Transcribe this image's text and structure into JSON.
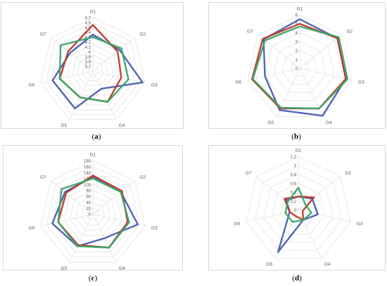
{
  "chart_data": [
    {
      "type": "radar",
      "panel_label": "a",
      "categories": [
        "G1",
        "G2",
        "G3",
        "G4",
        "G5",
        "G6",
        "G7"
      ],
      "rmin": 3.6,
      "rmax": 4.7,
      "ticks": [
        "3.7",
        "3.8",
        "3.9",
        "4",
        "4.1",
        "4.2",
        "4.3",
        "4.4",
        "4.5",
        "4.6",
        "4.7"
      ],
      "grid": true,
      "series": [
        {
          "color": "#4a5eb0",
          "values": [
            4.35,
            4.3,
            4.65,
            4.0,
            4.45,
            4.45,
            4.2
          ]
        },
        {
          "color": "#c0392b",
          "values": [
            4.55,
            4.25,
            4.2,
            4.3,
            4.2,
            4.3,
            4.25
          ]
        },
        {
          "color": "#3aa66a",
          "values": [
            4.3,
            4.35,
            4.35,
            4.3,
            4.2,
            4.3,
            4.45
          ]
        }
      ]
    },
    {
      "type": "radar",
      "panel_label": "b",
      "categories": [
        "G1",
        "G2",
        "G3",
        "G4",
        "G5",
        "G6",
        "G7"
      ],
      "rmin": 0,
      "rmax": 6,
      "ticks": [
        "0",
        "1",
        "2",
        "3",
        "4",
        "5",
        "6"
      ],
      "grid": true,
      "series": [
        {
          "color": "#4a5eb0",
          "values": [
            5.5,
            5.4,
            5.3,
            5.9,
            5.2,
            4.0,
            5.2
          ]
        },
        {
          "color": "#c0392b",
          "values": [
            5.0,
            5.4,
            5.3,
            5.0,
            5.0,
            5.5,
            5.3
          ]
        },
        {
          "color": "#3aa66a",
          "values": [
            4.7,
            5.6,
            5.5,
            5.0,
            4.9,
            5.4,
            5.0
          ]
        }
      ]
    },
    {
      "type": "radar",
      "panel_label": "c",
      "categories": [
        "G1",
        "G2",
        "G3",
        "G4",
        "G5",
        "G6",
        "G7"
      ],
      "rmin": 0,
      "rmax": 180,
      "ticks": [
        "0",
        "20",
        "40",
        "60",
        "80",
        "100",
        "120",
        "140",
        "160",
        "180"
      ],
      "grid": true,
      "series": [
        {
          "color": "#4a5eb0",
          "values": [
            125,
            120,
            155,
            90,
            120,
            140,
            120
          ]
        },
        {
          "color": "#c0392b",
          "values": [
            130,
            125,
            120,
            125,
            115,
            120,
            115
          ]
        },
        {
          "color": "#3aa66a",
          "values": [
            120,
            120,
            125,
            125,
            120,
            120,
            135
          ]
        }
      ]
    },
    {
      "type": "radar",
      "panel_label": "d",
      "categories": [
        "G1",
        "G2",
        "G3",
        "G4",
        "G5",
        "G6",
        "G7"
      ],
      "rmin": 0,
      "rmax": 1.2,
      "ticks": [
        "0",
        "0.2",
        "0.4",
        "0.6",
        "0.8",
        "1",
        "1.2"
      ],
      "grid": true,
      "series": [
        {
          "color": "#4a5eb0",
          "values": [
            0.3,
            0.4,
            0.45,
            0.25,
            1.05,
            0.2,
            0.35
          ]
        },
        {
          "color": "#c0392b",
          "values": [
            0.3,
            0.45,
            0.1,
            0.25,
            0.15,
            0.2,
            0.4
          ]
        },
        {
          "color": "#3aa66a",
          "values": [
            0.5,
            0.2,
            0.3,
            0.25,
            0.3,
            0.3,
            0.3
          ]
        }
      ]
    }
  ]
}
